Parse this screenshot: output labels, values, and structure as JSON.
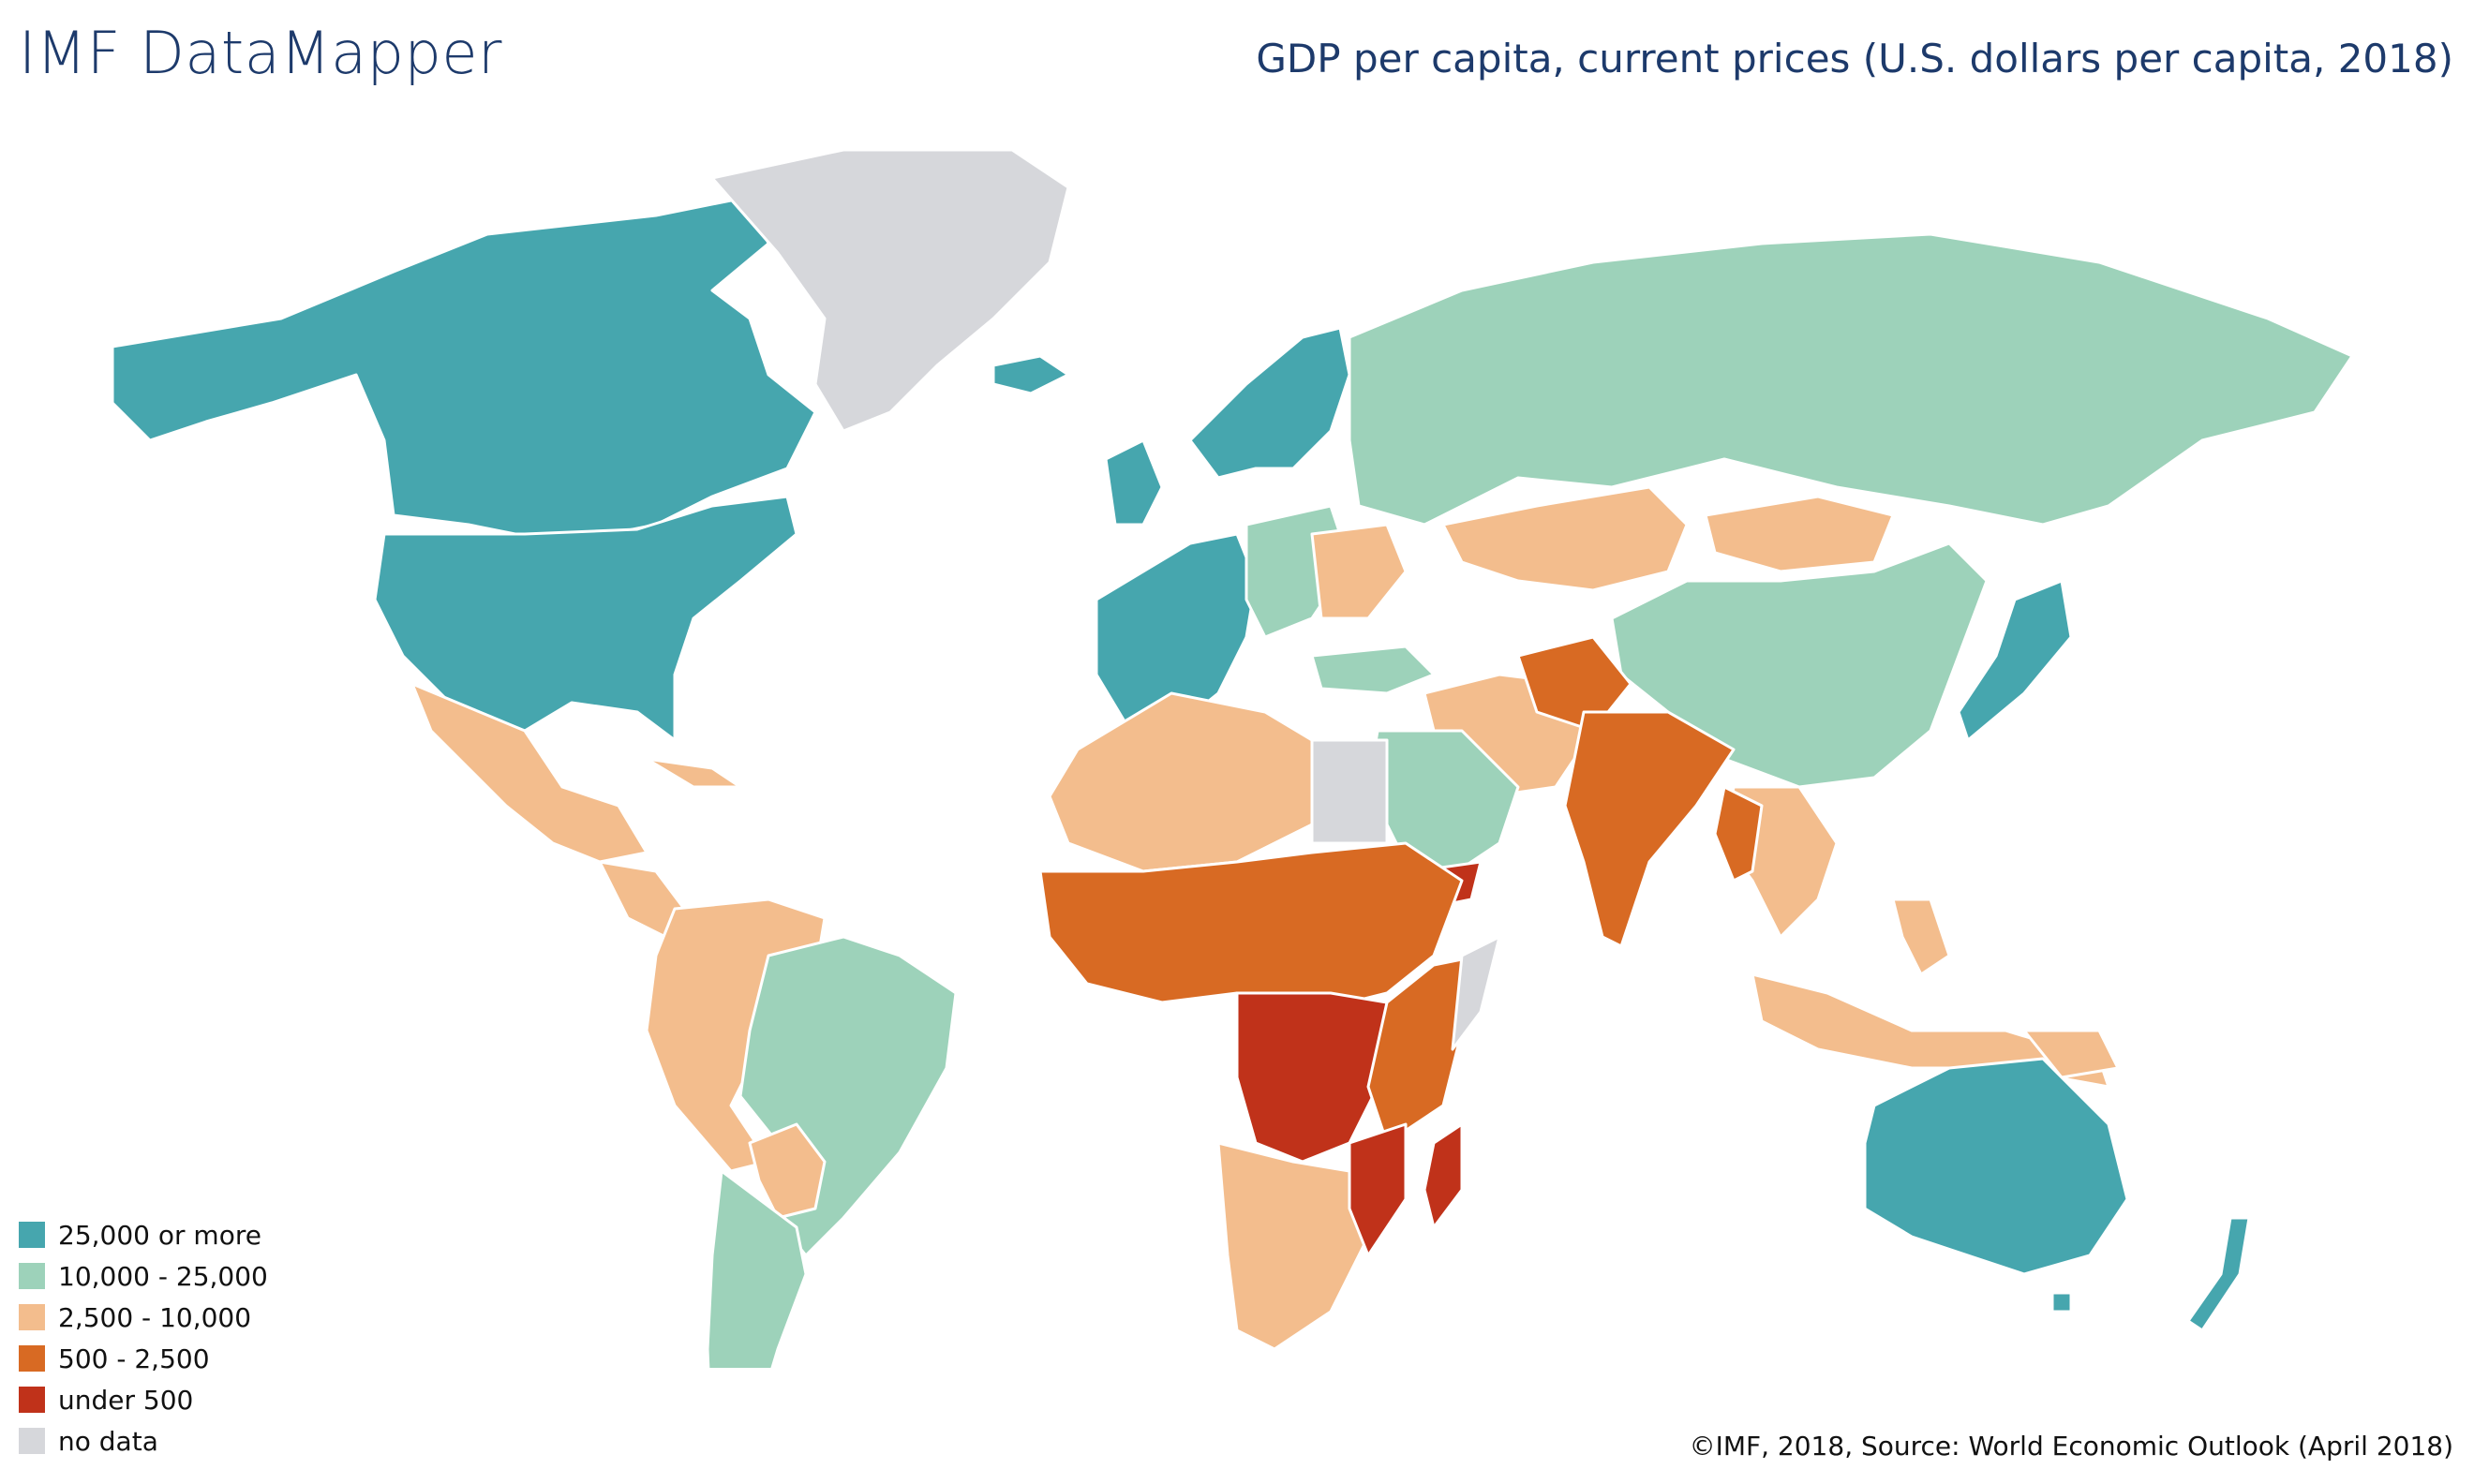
{
  "app_title": "IMF DataMapper",
  "map_title": "GDP per capita, current prices (U.S. dollars per capita, 2018)",
  "credit": "©IMF, 2018, Source: World Economic Outlook (April 2018)",
  "legend": [
    {
      "label": "25,000 or more",
      "color": "#46a6ae"
    },
    {
      "label": "10,000 - 25,000",
      "color": "#9dd2ba"
    },
    {
      "label": "2,500 - 10,000",
      "color": "#f3bd8d"
    },
    {
      "label": "500 - 2,500",
      "color": "#d86a23"
    },
    {
      "label": "under 500",
      "color": "#c0321a"
    },
    {
      "label": "no data",
      "color": "#d6d7db"
    }
  ]
}
